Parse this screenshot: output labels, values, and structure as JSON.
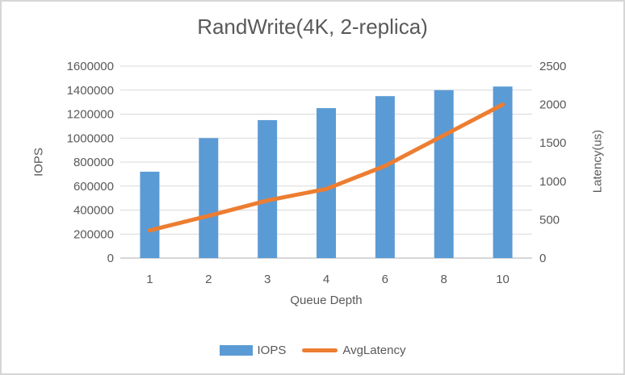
{
  "title": "RandWrite(4K, 2-replica)",
  "colors": {
    "bar_blue": "#5B9BD5",
    "line_orange": "#ED7D31",
    "text_gray": "#595959",
    "gridline": "#D9D9D9",
    "axis_line": "#BFBFBF",
    "background": "#FFFFFF",
    "frame_border": "#D6D6D6"
  },
  "chart_data": {
    "type": "bar",
    "subtype": "combo-bar-line-dual-axis",
    "title": "RandWrite(4K, 2-replica)",
    "categories": [
      "1",
      "2",
      "3",
      "4",
      "6",
      "8",
      "10"
    ],
    "series": [
      {
        "name": "IOPS",
        "type": "bar",
        "axis": "left",
        "color": "#5B9BD5",
        "values": [
          720000,
          1000000,
          1150000,
          1250000,
          1350000,
          1400000,
          1430000
        ]
      },
      {
        "name": "AvgLatency",
        "type": "line",
        "axis": "right",
        "color": "#ED7D31",
        "values": [
          360,
          550,
          750,
          900,
          1200,
          1600,
          2000
        ]
      }
    ],
    "xlabel": "Queue Depth",
    "ylabel_left": "IOPS",
    "ylabel_right": "Latency(us)",
    "ylim_left": [
      0,
      1600000
    ],
    "ylim_right": [
      0,
      2500
    ],
    "y_left_ticks": [
      0,
      200000,
      400000,
      600000,
      800000,
      1000000,
      1200000,
      1400000,
      1600000
    ],
    "y_right_ticks": [
      0,
      500,
      1000,
      1500,
      2000,
      2500
    ],
    "grid": true,
    "legend_position": "bottom"
  }
}
